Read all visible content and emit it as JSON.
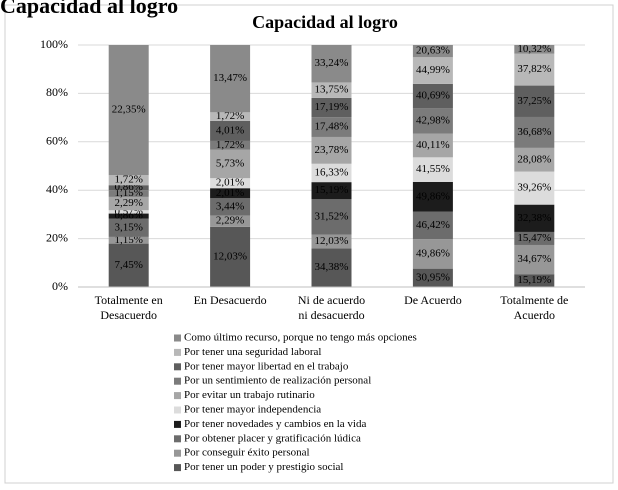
{
  "heading": "Capacidad al logro",
  "chart_data": {
    "type": "bar",
    "stacked_percent": true,
    "title": "Capacidad al logro",
    "categories": [
      "Totalmente en Desacuerdo",
      "En Desacuerdo",
      "Ni de acuerdo ni desacuerdo",
      "De Acuerdo",
      "Totalmente de Acuerdo"
    ],
    "series": [
      {
        "name": "Como último recurso, porque no tengo más opciones",
        "color": "#8a8a8a",
        "values": [
          22.35,
          13.47,
          33.24,
          20.63,
          10.32
        ],
        "value_labels": [
          "22,35%",
          "13,47%",
          "33,24%",
          "20,63%",
          "10,32%"
        ]
      },
      {
        "name": "Por tener una seguridad laboral",
        "color": "#b8b8b8",
        "values": [
          1.72,
          1.72,
          13.75,
          44.99,
          37.82
        ],
        "value_labels": [
          "1,72%",
          "1,72%",
          "13,75%",
          "44,99%",
          "37,82%"
        ]
      },
      {
        "name": "Por tener mayor libertad en el trabajo",
        "color": "#5f5f5f",
        "values": [
          0.86,
          4.01,
          17.19,
          40.69,
          37.25
        ],
        "value_labels": [
          "0,86%",
          "4,01%",
          "17,19%",
          "40,69%",
          "37,25%"
        ]
      },
      {
        "name": "Por un sentimiento de realización personal",
        "color": "#7b7b7b",
        "values": [
          1.15,
          1.72,
          17.48,
          42.98,
          36.68
        ],
        "value_labels": [
          "1,15%",
          "1,72%",
          "17,48%",
          "42,98%",
          "36,68%"
        ]
      },
      {
        "name": "Por evitar un trabajo rutinario",
        "color": "#a6a6a6",
        "values": [
          2.29,
          5.73,
          23.78,
          40.11,
          28.08
        ],
        "value_labels": [
          "2,29%",
          "5,73%",
          "23,78%",
          "40,11%",
          "28,08%"
        ]
      },
      {
        "name": "Por tener mayor independencia",
        "color": "#dcdcdc",
        "values": [
          0.57,
          2.01,
          16.33,
          41.55,
          39.26
        ],
        "value_labels": [
          "0,57%",
          "2,01%",
          "16,33%",
          "41,55%",
          "39,26%"
        ]
      },
      {
        "name": "Por tener novedades y cambios en la vida",
        "color": "#1c1c1c",
        "values": [
          0.86,
          2.01,
          15.19,
          49.86,
          32.38
        ],
        "value_labels": [
          "0,86%",
          "2,01%",
          "15,19%",
          "49,86%",
          "32,38%"
        ]
      },
      {
        "name": "Por obtener placer y gratificación lúdica",
        "color": "#6c6c6c",
        "values": [
          3.15,
          3.44,
          31.52,
          46.42,
          15.47
        ],
        "value_labels": [
          "3,15%",
          "3,44%",
          "31,52%",
          "46,42%",
          "15,47%"
        ]
      },
      {
        "name": "Por conseguir éxito personal",
        "color": "#979797",
        "values": [
          1.15,
          2.29,
          12.03,
          49.86,
          34.67
        ],
        "value_labels": [
          "1,15%",
          "2,29%",
          "12,03%",
          "49,86%",
          "34,67%"
        ]
      },
      {
        "name": "Por tener un poder y prestigio social",
        "color": "#575757",
        "values": [
          7.45,
          12.03,
          34.38,
          30.95,
          15.19
        ],
        "value_labels": [
          "7,45%",
          "12,03%",
          "34,38%",
          "30,95%",
          "15,19%"
        ]
      }
    ],
    "ylim": [
      0,
      100
    ],
    "yticks": [
      {
        "value": 0,
        "label": "0%"
      },
      {
        "value": 20,
        "label": "20%"
      },
      {
        "value": 40,
        "label": "40%"
      },
      {
        "value": 60,
        "label": "60%"
      },
      {
        "value": 80,
        "label": "80%"
      },
      {
        "value": 100,
        "label": "100%"
      }
    ],
    "grid": true
  }
}
